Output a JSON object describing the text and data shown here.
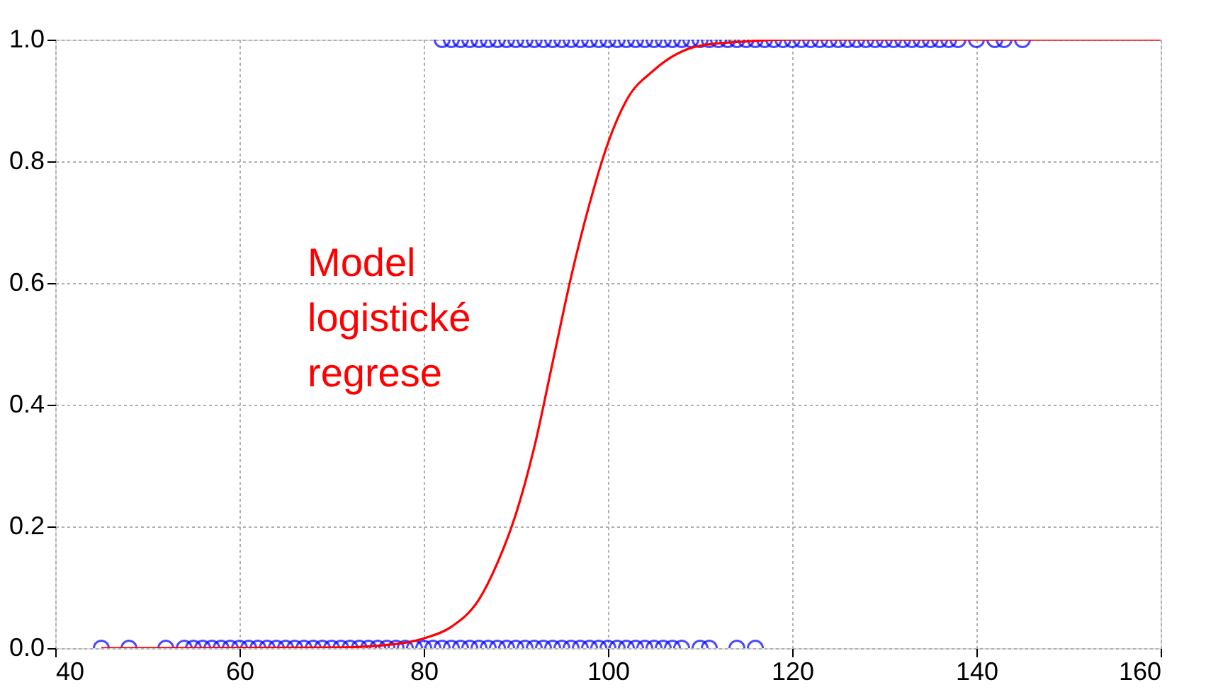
{
  "chart_data": {
    "type": "scatter",
    "xlim": [
      40,
      160
    ],
    "xticks": [
      40,
      60,
      80,
      100,
      120,
      140,
      160
    ],
    "ylim": [
      0,
      1
    ],
    "yticks": [
      {
        "value": 0,
        "label": "0.0"
      },
      {
        "value": 0.2,
        "label": "0.2"
      },
      {
        "value": 0.4,
        "label": "0.4"
      },
      {
        "value": 0.6,
        "label": "0.6"
      },
      {
        "value": 0.8,
        "label": "0.8"
      },
      {
        "value": 1,
        "label": "1.0"
      }
    ],
    "grid": true,
    "marker": "circle",
    "series": [
      {
        "color": "#0000ff",
        "x": [
          45,
          48,
          52,
          54,
          55,
          56,
          57,
          58,
          59,
          60,
          61,
          62,
          63,
          64,
          65,
          66,
          67,
          68,
          69,
          70,
          71,
          72,
          73,
          74,
          75,
          76,
          77,
          78,
          79,
          80,
          81,
          82,
          83,
          84,
          85,
          86,
          87,
          88,
          89,
          90,
          91,
          92,
          93,
          94,
          95,
          96,
          97,
          98,
          99,
          100,
          101,
          102,
          103,
          104,
          105,
          106,
          107,
          108,
          110,
          111,
          114,
          116
        ],
        "values": [
          0,
          0,
          0,
          0,
          0,
          0,
          0,
          0,
          0,
          0,
          0,
          0,
          0,
          0,
          0,
          0,
          0,
          0,
          0,
          0,
          0,
          0,
          0,
          0,
          0,
          0,
          0,
          0,
          0,
          0,
          0,
          0,
          0,
          0,
          0,
          0,
          0,
          0,
          0,
          0,
          0,
          0,
          0,
          0,
          0,
          0,
          0,
          0,
          0,
          0,
          0,
          0,
          0,
          0,
          0,
          0,
          0,
          0,
          0,
          0,
          0,
          0
        ]
      },
      {
        "color": "#0000ff",
        "x": [
          82,
          83,
          84,
          85,
          86,
          87,
          88,
          89,
          90,
          91,
          92,
          93,
          94,
          95,
          96,
          97,
          98,
          99,
          100,
          101,
          102,
          103,
          104,
          105,
          106,
          107,
          108,
          109,
          110,
          111,
          112,
          113,
          114,
          115,
          116,
          117,
          118,
          119,
          120,
          121,
          122,
          123,
          124,
          125,
          126,
          127,
          128,
          129,
          130,
          131,
          132,
          133,
          134,
          135,
          136,
          137,
          138,
          140,
          142,
          143,
          145
        ],
        "values": [
          1,
          1,
          1,
          1,
          1,
          1,
          1,
          1,
          1,
          1,
          1,
          1,
          1,
          1,
          1,
          1,
          1,
          1,
          1,
          1,
          1,
          1,
          1,
          1,
          1,
          1,
          1,
          1,
          1,
          1,
          1,
          1,
          1,
          1,
          1,
          1,
          1,
          1,
          1,
          1,
          1,
          1,
          1,
          1,
          1,
          1,
          1,
          1,
          1,
          1,
          1,
          1,
          1,
          1,
          1,
          1,
          1,
          1,
          1,
          1,
          1
        ]
      },
      {
        "type": "line",
        "color": "#ff0000",
        "marker": "none",
        "x": [
          45,
          70,
          75,
          80,
          83,
          86,
          88,
          90,
          92,
          94,
          96,
          98,
          100,
          102,
          105,
          110,
          115,
          120,
          160
        ],
        "values": [
          0,
          0.001,
          0.004,
          0.016,
          0.035,
          0.08,
          0.14,
          0.22,
          0.33,
          0.47,
          0.61,
          0.73,
          0.83,
          0.9,
          0.95,
          0.99,
          0.997,
          1,
          1
        ]
      }
    ],
    "annotations": [
      "Model\nlogistické\nregrese"
    ]
  }
}
